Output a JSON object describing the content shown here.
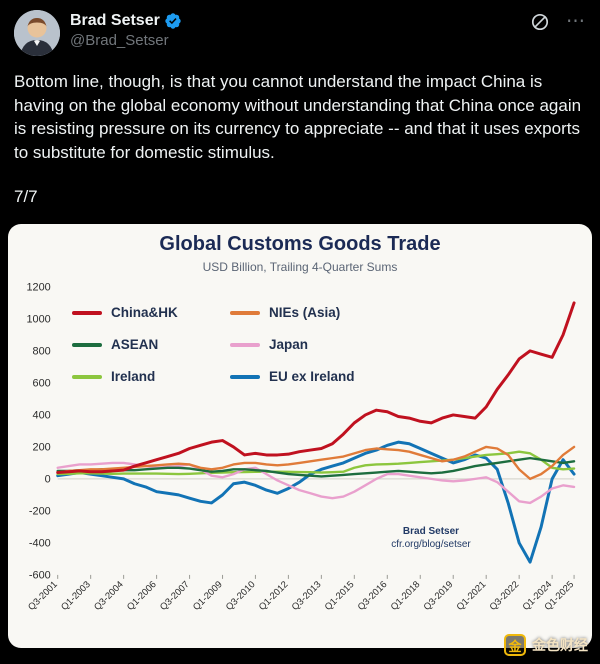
{
  "tweet": {
    "author": "Brad Setser",
    "handle": "@Brad_Setser",
    "body": "Bottom line, though, is that you cannot understand the impact China is having on the global economy without understanding that China once again is resisting pressure on its currency to appreciate -- and that it uses exports to substitute for domestic stimulus.",
    "thread_position": "7/7"
  },
  "icons": {
    "verified": "verified-badge",
    "grok": "grok-circle-slash",
    "more": "⋯"
  },
  "watermark": {
    "text": "金色财经",
    "icon_char": "金",
    "color": "#f0b90b"
  },
  "chart_data": {
    "type": "line",
    "title": "Global Customs Goods Trade",
    "subtitle": "USD Billion, Trailing 4-Quarter Sums",
    "x_start": 2001.5,
    "x_step": 0.5,
    "ylim": [
      -600,
      1200
    ],
    "yticks": [
      1200,
      1000,
      800,
      600,
      400,
      200,
      0,
      -200,
      -400,
      -600
    ],
    "xtick_labels": [
      "Q3-2001",
      "Q1-2003",
      "Q3-2004",
      "Q1-2006",
      "Q3-2007",
      "Q1-2009",
      "Q3-2010",
      "Q1-2012",
      "Q3-2013",
      "Q1-2015",
      "Q3-2016",
      "Q1-2018",
      "Q3-2019",
      "Q1-2021",
      "Q3-2022",
      "Q1-2024",
      "Q1-2025"
    ],
    "grid": "none (zero line only)",
    "legend_position": "upper-left inside plot, 2 columns",
    "annotation": {
      "line1": "Brad Setser",
      "line2": "cfr.org/blog/setser"
    },
    "series": [
      {
        "name": "China&HK",
        "color": "#c0111f",
        "width": 3,
        "values": [
          40,
          45,
          50,
          45,
          45,
          50,
          55,
          80,
          100,
          120,
          140,
          160,
          190,
          210,
          230,
          240,
          200,
          150,
          160,
          150,
          150,
          155,
          170,
          180,
          190,
          220,
          280,
          350,
          400,
          430,
          420,
          390,
          380,
          360,
          350,
          380,
          400,
          390,
          380,
          450,
          560,
          650,
          750,
          800,
          780,
          760,
          900,
          1100
        ]
      },
      {
        "name": "NIEs (Asia)",
        "color": "#e07b39",
        "width": 2.4,
        "values": [
          40,
          50,
          55,
          60,
          60,
          65,
          70,
          75,
          80,
          85,
          90,
          95,
          90,
          70,
          60,
          70,
          90,
          100,
          100,
          90,
          85,
          90,
          100,
          110,
          120,
          130,
          140,
          160,
          180,
          190,
          185,
          180,
          170,
          150,
          130,
          110,
          120,
          140,
          170,
          200,
          190,
          150,
          60,
          0,
          30,
          80,
          150,
          200
        ]
      },
      {
        "name": "ASEAN",
        "color": "#1d6d3f",
        "width": 2.4,
        "values": [
          50,
          50,
          55,
          55,
          60,
          60,
          55,
          55,
          60,
          65,
          70,
          70,
          65,
          55,
          45,
          50,
          60,
          60,
          55,
          50,
          40,
          30,
          25,
          20,
          15,
          20,
          25,
          30,
          35,
          40,
          45,
          50,
          45,
          40,
          35,
          40,
          50,
          65,
          80,
          90,
          100,
          110,
          120,
          130,
          120,
          110,
          100,
          110
        ]
      },
      {
        "name": "Japan",
        "color": "#e9a0cd",
        "width": 2.4,
        "values": [
          70,
          80,
          90,
          90,
          95,
          100,
          100,
          90,
          80,
          70,
          75,
          80,
          90,
          60,
          20,
          10,
          30,
          60,
          70,
          30,
          -10,
          -40,
          -70,
          -90,
          -110,
          -120,
          -110,
          -80,
          -40,
          0,
          30,
          30,
          20,
          10,
          0,
          -10,
          -15,
          -10,
          0,
          10,
          -20,
          -80,
          -140,
          -150,
          -110,
          -60,
          -40,
          -50
        ]
      },
      {
        "name": "Ireland",
        "color": "#8cc63e",
        "width": 2.4,
        "values": [
          30,
          32,
          35,
          35,
          33,
          32,
          33,
          33,
          34,
          33,
          32,
          30,
          32,
          35,
          38,
          40,
          42,
          43,
          44,
          45,
          45,
          44,
          43,
          42,
          40,
          42,
          45,
          70,
          85,
          90,
          92,
          95,
          100,
          105,
          110,
          115,
          120,
          130,
          140,
          150,
          155,
          160,
          170,
          160,
          120,
          70,
          60,
          65
        ]
      },
      {
        "name": "EU ex Ireland",
        "color": "#1273b5",
        "width": 3,
        "values": [
          20,
          30,
          40,
          30,
          20,
          10,
          0,
          -30,
          -50,
          -80,
          -90,
          -100,
          -120,
          -140,
          -150,
          -100,
          -30,
          -20,
          -40,
          -70,
          -90,
          -60,
          -20,
          30,
          60,
          80,
          100,
          130,
          160,
          180,
          210,
          230,
          220,
          190,
          160,
          130,
          100,
          120,
          150,
          130,
          60,
          -150,
          -400,
          -520,
          -300,
          0,
          120,
          30
        ]
      }
    ]
  }
}
